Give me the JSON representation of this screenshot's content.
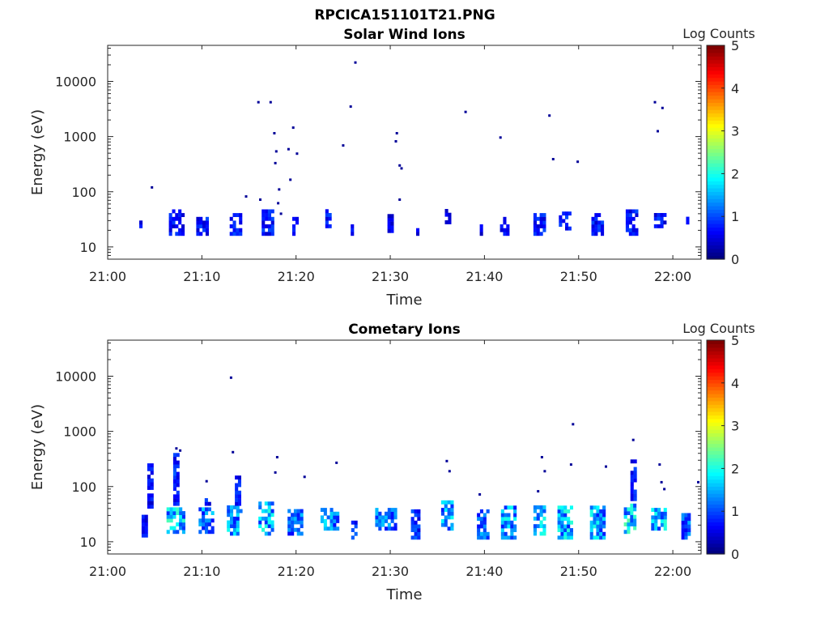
{
  "figure_title": "RPCICA151101T21.PNG",
  "colormap": [
    "#000080",
    "#0000ff",
    "#0080ff",
    "#00ffff",
    "#80ff80",
    "#ffff00",
    "#ff8000",
    "#ff0000",
    "#800000"
  ],
  "chart_data": [
    {
      "type": "heatmap",
      "title": "Solar Wind Ions",
      "xlabel": "Time",
      "ylabel": "Energy (eV)",
      "y_scale": "log",
      "ylim": [
        6,
        45000
      ],
      "xlim": [
        "21:00",
        "22:03"
      ],
      "x_ticks": [
        "21:00",
        "21:10",
        "21:20",
        "21:30",
        "21:40",
        "21:50",
        "22:00"
      ],
      "y_ticks": [
        "10",
        "100",
        "1000",
        "10000"
      ],
      "colorbar": {
        "label": "Log Counts",
        "range": [
          0,
          5
        ],
        "ticks": [
          "0",
          "1",
          "2",
          "3",
          "4",
          "5"
        ]
      },
      "grid": false,
      "clusters": [
        {
          "t": 3.5,
          "w": 0.3,
          "e_lo": 22,
          "e_hi": 28,
          "c": 0.7
        },
        {
          "t": 7.3,
          "w": 1.6,
          "e_lo": 16,
          "e_hi": 45,
          "c": 0.8
        },
        {
          "t": 10.0,
          "w": 1.2,
          "e_lo": 16,
          "e_hi": 32,
          "c": 0.8
        },
        {
          "t": 13.6,
          "w": 1.3,
          "e_lo": 16,
          "e_hi": 40,
          "c": 0.8
        },
        {
          "t": 17.0,
          "w": 1.3,
          "e_lo": 16,
          "e_hi": 45,
          "c": 0.8
        },
        {
          "t": 20.0,
          "w": 0.8,
          "e_lo": 16,
          "e_hi": 32,
          "c": 0.7
        },
        {
          "t": 23.5,
          "w": 0.8,
          "e_lo": 22,
          "e_hi": 45,
          "c": 0.8
        },
        {
          "t": 26.0,
          "w": 0.4,
          "e_lo": 16,
          "e_hi": 22,
          "c": 0.7
        },
        {
          "t": 30.0,
          "w": 0.6,
          "e_lo": 18,
          "e_hi": 35,
          "c": 0.6
        },
        {
          "t": 32.9,
          "w": 0.3,
          "e_lo": 16,
          "e_hi": 20,
          "c": 0.6
        },
        {
          "t": 36.1,
          "w": 0.6,
          "e_lo": 26,
          "e_hi": 45,
          "c": 0.7
        },
        {
          "t": 39.7,
          "w": 0.4,
          "e_lo": 16,
          "e_hi": 22,
          "c": 0.6
        },
        {
          "t": 42.2,
          "w": 1.1,
          "e_lo": 16,
          "e_hi": 34,
          "c": 0.8
        },
        {
          "t": 45.8,
          "w": 1.2,
          "e_lo": 16,
          "e_hi": 38,
          "c": 0.8
        },
        {
          "t": 48.6,
          "w": 1.4,
          "e_lo": 20,
          "e_hi": 38,
          "c": 0.8
        },
        {
          "t": 52.0,
          "w": 1.3,
          "e_lo": 16,
          "e_hi": 38,
          "c": 0.8
        },
        {
          "t": 55.6,
          "w": 1.2,
          "e_lo": 16,
          "e_hi": 45,
          "c": 0.8
        },
        {
          "t": 58.6,
          "w": 1.2,
          "e_lo": 22,
          "e_hi": 38,
          "c": 0.8
        },
        {
          "t": 61.6,
          "w": 0.4,
          "e_lo": 22,
          "e_hi": 35,
          "c": 0.7
        }
      ],
      "points": [
        {
          "t": 4.7,
          "e": 120
        },
        {
          "t": 14.7,
          "e": 82
        },
        {
          "t": 16.0,
          "e": 4200
        },
        {
          "t": 17.3,
          "e": 4200
        },
        {
          "t": 17.7,
          "e": 1150
        },
        {
          "t": 17.9,
          "e": 540
        },
        {
          "t": 17.8,
          "e": 330
        },
        {
          "t": 18.2,
          "e": 110
        },
        {
          "t": 18.1,
          "e": 62
        },
        {
          "t": 18.4,
          "e": 40
        },
        {
          "t": 19.2,
          "e": 590
        },
        {
          "t": 19.7,
          "e": 1450
        },
        {
          "t": 20.1,
          "e": 490
        },
        {
          "t": 19.4,
          "e": 165
        },
        {
          "t": 16.2,
          "e": 72
        },
        {
          "t": 25.0,
          "e": 690
        },
        {
          "t": 25.8,
          "e": 3500
        },
        {
          "t": 26.3,
          "e": 22000
        },
        {
          "t": 30.7,
          "e": 1150
        },
        {
          "t": 30.6,
          "e": 820
        },
        {
          "t": 31.0,
          "e": 300
        },
        {
          "t": 31.2,
          "e": 265
        },
        {
          "t": 31.0,
          "e": 72
        },
        {
          "t": 38.0,
          "e": 2800
        },
        {
          "t": 41.7,
          "e": 960
        },
        {
          "t": 46.9,
          "e": 2400
        },
        {
          "t": 47.3,
          "e": 390
        },
        {
          "t": 49.9,
          "e": 350
        },
        {
          "t": 58.1,
          "e": 4200
        },
        {
          "t": 58.9,
          "e": 3300
        },
        {
          "t": 58.4,
          "e": 1250
        }
      ]
    },
    {
      "type": "heatmap",
      "title": "Cometary Ions",
      "xlabel": "Time",
      "ylabel": "Energy (eV)",
      "y_scale": "log",
      "ylim": [
        6,
        45000
      ],
      "xlim": [
        "21:00",
        "22:03"
      ],
      "x_ticks": [
        "21:00",
        "21:10",
        "21:20",
        "21:30",
        "21:40",
        "21:50",
        "22:00"
      ],
      "y_ticks": [
        "10",
        "100",
        "1000",
        "10000"
      ],
      "colorbar": {
        "label": "Log Counts",
        "range": [
          0,
          5
        ],
        "ticks": [
          "0",
          "1",
          "2",
          "3",
          "4",
          "5"
        ]
      },
      "grid": false,
      "clusters": [
        {
          "t": 3.9,
          "w": 0.6,
          "e_lo": 12,
          "e_hi": 28,
          "c": 0.8
        },
        {
          "t": 4.6,
          "w": 0.8,
          "e_lo": 40,
          "e_hi": 250,
          "c": 0.7
        },
        {
          "t": 7.2,
          "w": 1.9,
          "e_lo": 14,
          "e_hi": 42,
          "c": 1.8
        },
        {
          "t": 7.3,
          "w": 0.7,
          "e_lo": 45,
          "e_hi": 380,
          "c": 0.9
        },
        {
          "t": 10.4,
          "w": 1.5,
          "e_lo": 14,
          "e_hi": 40,
          "c": 1.4
        },
        {
          "t": 10.6,
          "w": 0.6,
          "e_lo": 45,
          "e_hi": 60,
          "c": 0.8
        },
        {
          "t": 13.4,
          "w": 1.5,
          "e_lo": 13,
          "e_hi": 42,
          "c": 1.6
        },
        {
          "t": 13.8,
          "w": 0.6,
          "e_lo": 45,
          "e_hi": 150,
          "c": 0.8
        },
        {
          "t": 16.8,
          "w": 1.6,
          "e_lo": 13,
          "e_hi": 50,
          "c": 1.7
        },
        {
          "t": 20.0,
          "w": 1.8,
          "e_lo": 13,
          "e_hi": 36,
          "c": 1.3
        },
        {
          "t": 23.6,
          "w": 2.0,
          "e_lo": 16,
          "e_hi": 40,
          "c": 1.5
        },
        {
          "t": 26.2,
          "w": 0.7,
          "e_lo": 11,
          "e_hi": 26,
          "c": 0.9
        },
        {
          "t": 29.5,
          "w": 2.2,
          "e_lo": 16,
          "e_hi": 40,
          "c": 1.3
        },
        {
          "t": 32.7,
          "w": 1.0,
          "e_lo": 11,
          "e_hi": 34,
          "c": 0.9
        },
        {
          "t": 36.1,
          "w": 1.4,
          "e_lo": 16,
          "e_hi": 55,
          "c": 1.6
        },
        {
          "t": 39.9,
          "w": 1.4,
          "e_lo": 11,
          "e_hi": 35,
          "c": 1.3
        },
        {
          "t": 42.5,
          "w": 1.5,
          "e_lo": 11,
          "e_hi": 42,
          "c": 1.6
        },
        {
          "t": 45.9,
          "w": 1.4,
          "e_lo": 13,
          "e_hi": 42,
          "c": 1.8
        },
        {
          "t": 48.6,
          "w": 1.7,
          "e_lo": 11,
          "e_hi": 42,
          "c": 1.7
        },
        {
          "t": 52.0,
          "w": 1.6,
          "e_lo": 11,
          "e_hi": 40,
          "c": 1.6
        },
        {
          "t": 55.5,
          "w": 1.4,
          "e_lo": 14,
          "e_hi": 45,
          "c": 1.9
        },
        {
          "t": 55.8,
          "w": 0.6,
          "e_lo": 55,
          "e_hi": 270,
          "c": 0.8
        },
        {
          "t": 58.6,
          "w": 1.8,
          "e_lo": 16,
          "e_hi": 40,
          "c": 1.7
        },
        {
          "t": 61.4,
          "w": 1.0,
          "e_lo": 11,
          "e_hi": 32,
          "c": 1.2
        }
      ],
      "points": [
        {
          "t": 13.1,
          "e": 9400
        },
        {
          "t": 7.3,
          "e": 490
        },
        {
          "t": 7.7,
          "e": 450
        },
        {
          "t": 13.3,
          "e": 420
        },
        {
          "t": 10.5,
          "e": 125
        },
        {
          "t": 17.8,
          "e": 180
        },
        {
          "t": 18.0,
          "e": 340
        },
        {
          "t": 20.9,
          "e": 150
        },
        {
          "t": 24.3,
          "e": 270
        },
        {
          "t": 36.0,
          "e": 290
        },
        {
          "t": 36.3,
          "e": 190
        },
        {
          "t": 39.5,
          "e": 72
        },
        {
          "t": 46.1,
          "e": 340
        },
        {
          "t": 46.4,
          "e": 190
        },
        {
          "t": 45.7,
          "e": 82
        },
        {
          "t": 49.4,
          "e": 1350
        },
        {
          "t": 49.2,
          "e": 250
        },
        {
          "t": 52.9,
          "e": 230
        },
        {
          "t": 55.8,
          "e": 700
        },
        {
          "t": 58.6,
          "e": 250
        },
        {
          "t": 58.8,
          "e": 120
        },
        {
          "t": 59.1,
          "e": 90
        },
        {
          "t": 62.7,
          "e": 120
        }
      ]
    }
  ]
}
